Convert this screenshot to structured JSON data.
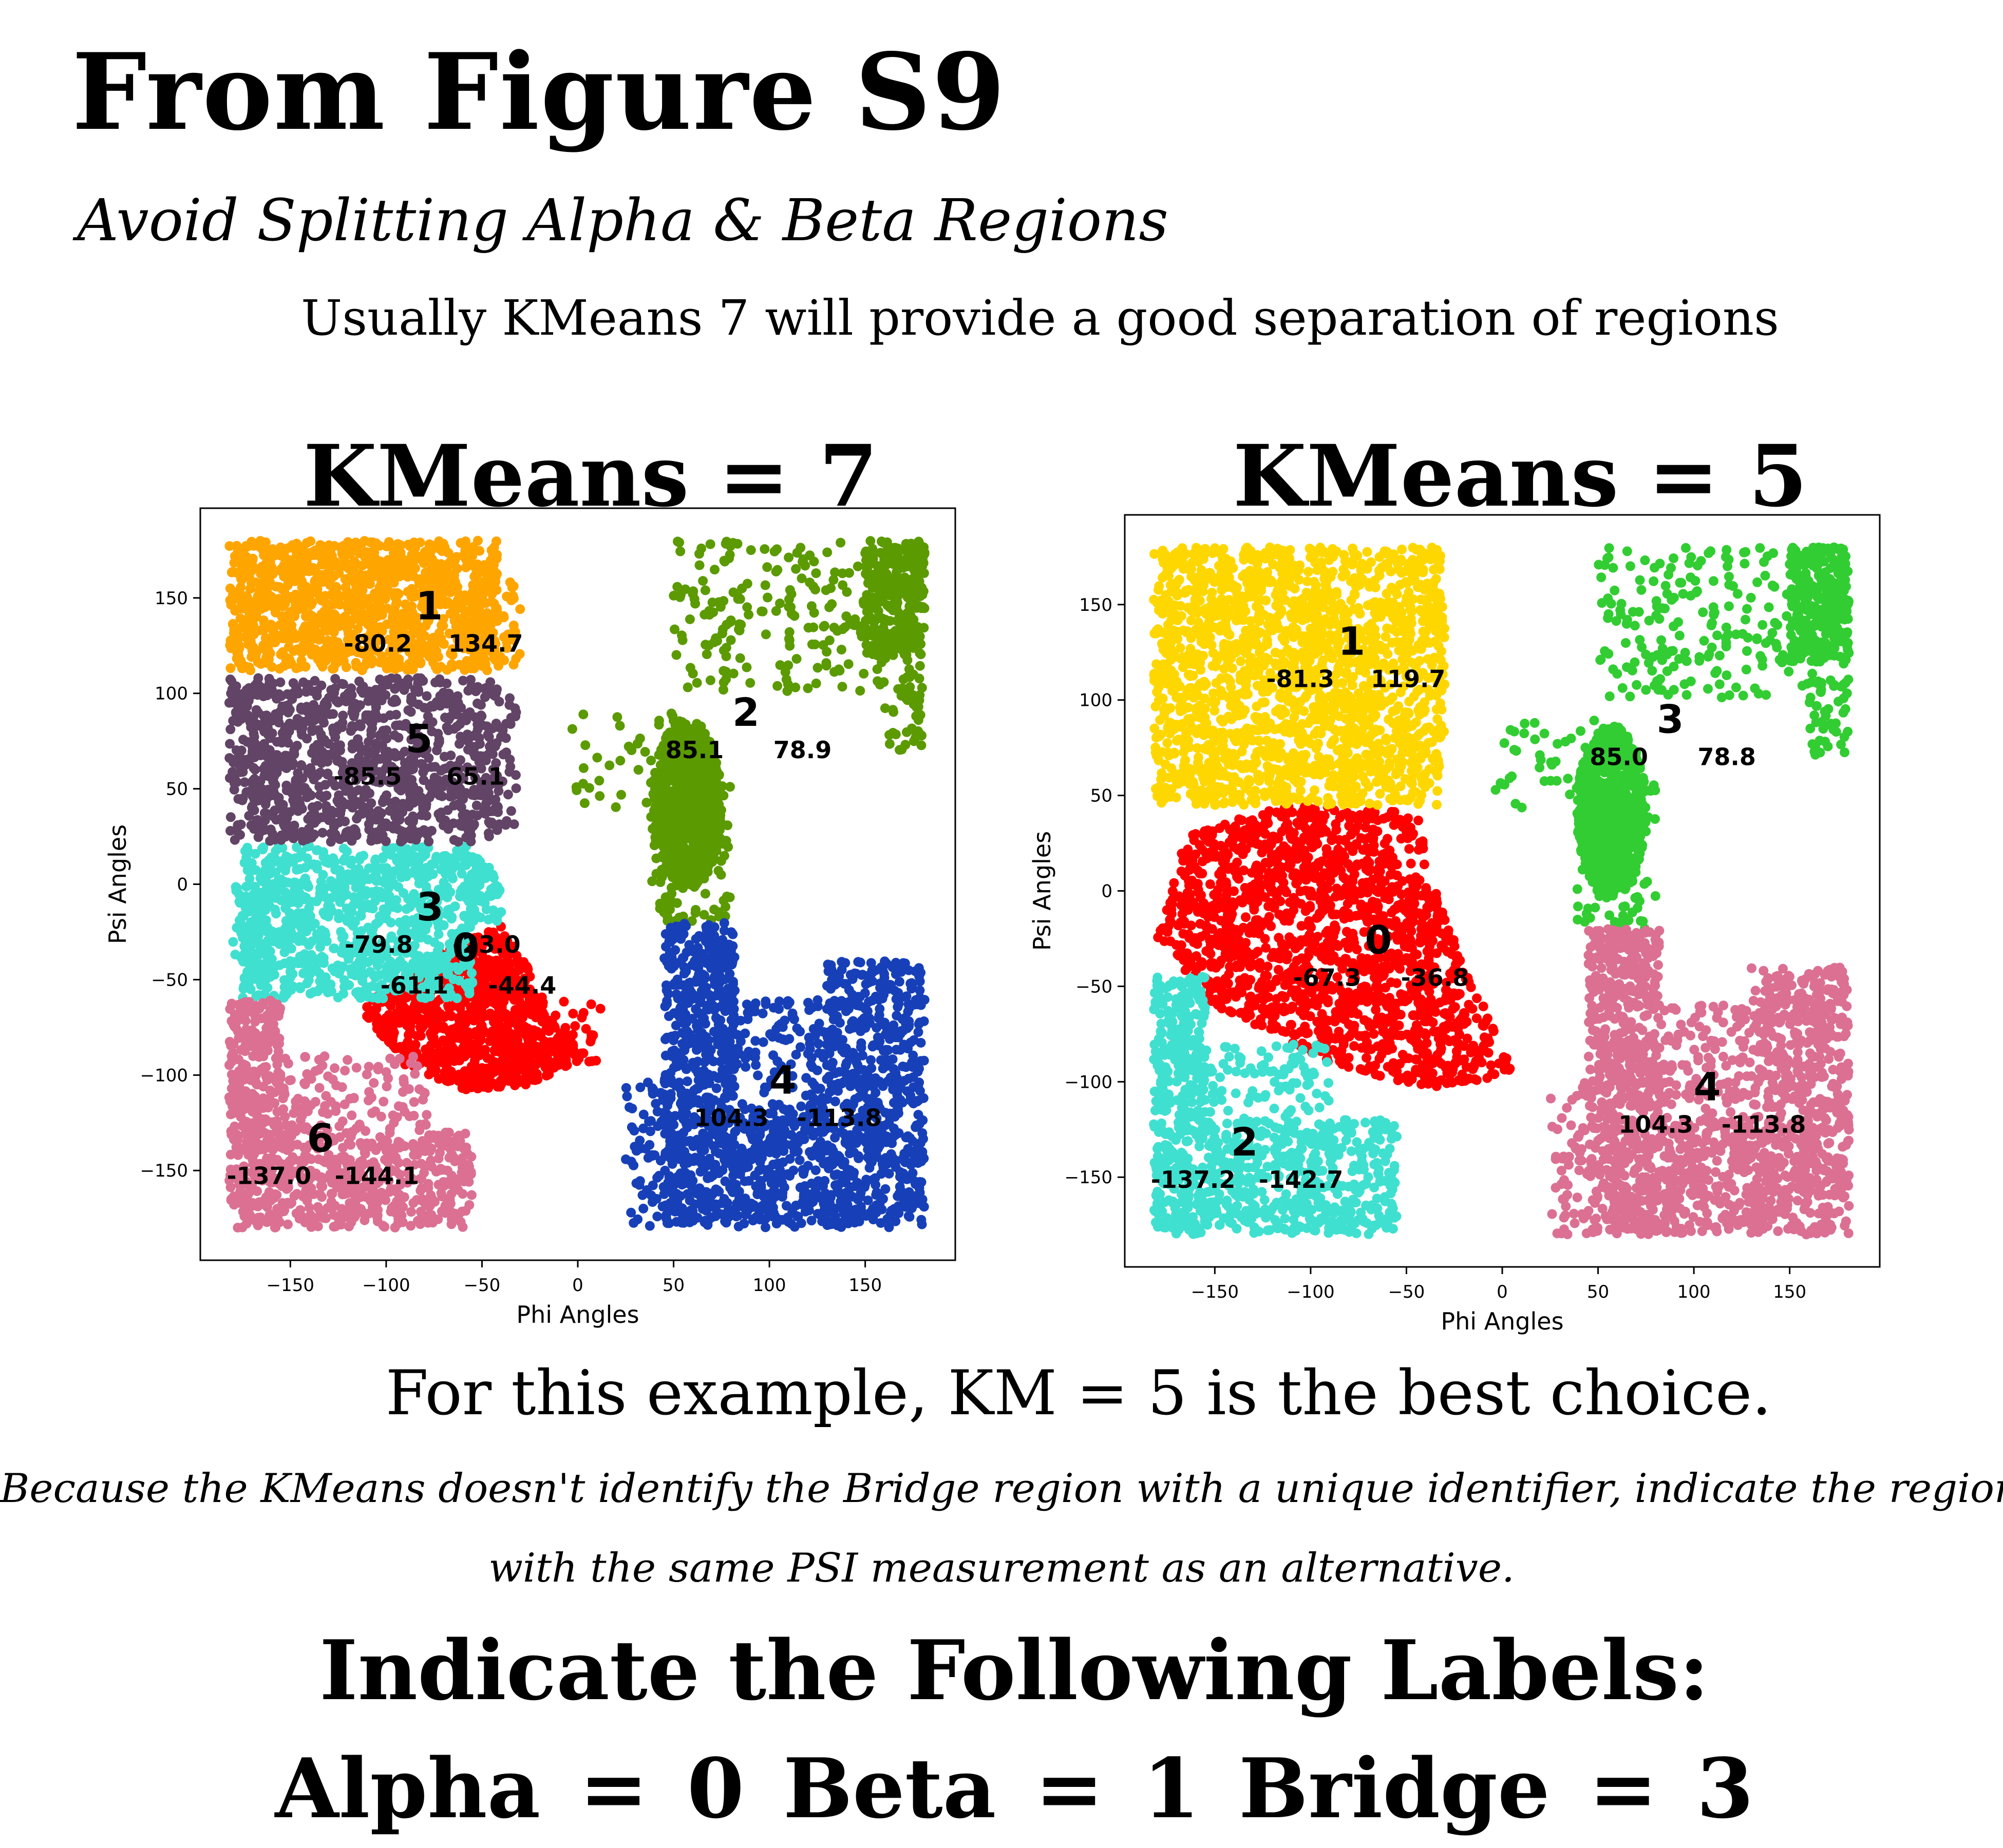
{
  "header": {
    "title": "From Figure S9",
    "subtitle": "Avoid Splitting Alpha & Beta Regions",
    "note": "Usually KMeans 7 will provide a good separation of regions"
  },
  "footer": {
    "conclusion": "For this example, KM = 5 is the best choice.",
    "explanation_line1": "Because the KMeans doesn't identify the Bridge region with a unique identifier, indicate the region",
    "explanation_line2": "with the same PSI measurement as an alternative.",
    "labels_heading": "Indicate the Following Labels:",
    "labels_values": "Alpha = 0   Beta = 1   Bridge = 3"
  },
  "chart_data": [
    {
      "type": "scatter",
      "title": "KMeans = 7",
      "xlabel": "Phi Angles",
      "ylabel": "Psi Angles",
      "xlim": [
        -197,
        197
      ],
      "ylim": [
        -197,
        197
      ],
      "xticks": [
        -150,
        -100,
        -50,
        0,
        50,
        100,
        150
      ],
      "yticks": [
        -150,
        -100,
        -50,
        0,
        50,
        100,
        150
      ],
      "clusters": [
        {
          "id": "0",
          "center": [
            -61.1,
            -44.4
          ],
          "color": "#ff0000"
        },
        {
          "id": "1",
          "center": [
            -80.2,
            134.7
          ],
          "color": "#ffa500"
        },
        {
          "id": "2",
          "center": [
            85.1,
            78.9
          ],
          "color": "#5b9a00"
        },
        {
          "id": "3",
          "center": [
            -79.8,
            -23.0
          ],
          "color": "#40e0d0"
        },
        {
          "id": "4",
          "center": [
            104.3,
            -113.8
          ],
          "color": "#1740b8"
        },
        {
          "id": "5",
          "center": [
            -85.5,
            65.1
          ],
          "color": "#624466"
        },
        {
          "id": "6",
          "center": [
            -137.0,
            -144.1
          ],
          "color": "#db7093"
        }
      ]
    },
    {
      "type": "scatter",
      "title": "KMeans = 5",
      "xlabel": "Phi Angles",
      "ylabel": "Psi Angles",
      "xlim": [
        -197,
        197
      ],
      "ylim": [
        -197,
        197
      ],
      "xticks": [
        -150,
        -100,
        -50,
        0,
        50,
        100,
        150
      ],
      "yticks": [
        -150,
        -100,
        -50,
        0,
        50,
        100,
        150
      ],
      "clusters": [
        {
          "id": "0",
          "center": [
            -67.3,
            -36.8
          ],
          "color": "#ff0000"
        },
        {
          "id": "1",
          "center": [
            -81.3,
            119.7
          ],
          "color": "#ffd700"
        },
        {
          "id": "2",
          "center": [
            -137.2,
            -142.7
          ],
          "color": "#40e0d0"
        },
        {
          "id": "3",
          "center": [
            85.0,
            78.8
          ],
          "color": "#32cd32"
        },
        {
          "id": "4",
          "center": [
            104.3,
            -113.8
          ],
          "color": "#db7093"
        }
      ]
    }
  ]
}
